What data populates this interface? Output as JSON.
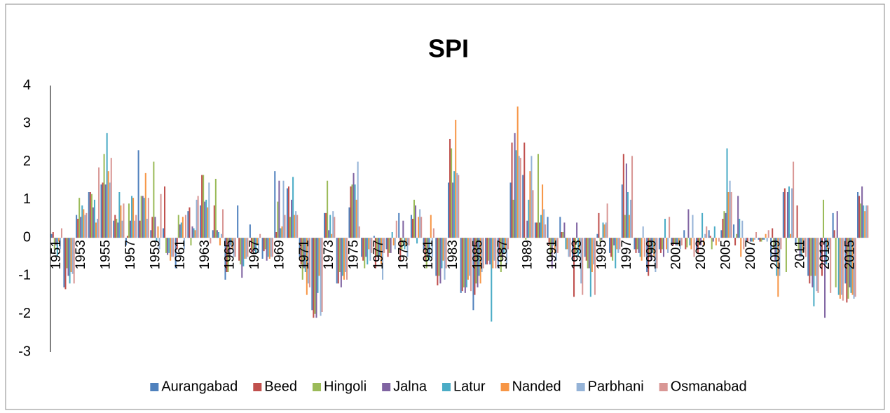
{
  "chart_data": {
    "type": "bar",
    "title": "SPI",
    "categories": [
      "1951",
      null,
      "1953",
      null,
      "1955",
      null,
      "1957",
      null,
      "1959",
      null,
      "1961",
      null,
      "1963",
      null,
      "1965",
      null,
      "1967",
      null,
      "1969",
      null,
      "1971",
      null,
      "1973",
      null,
      "1975",
      null,
      "1977",
      null,
      "1979",
      null,
      "1981",
      null,
      "1983",
      null,
      "1985",
      null,
      "1987",
      null,
      "1989",
      null,
      "1991",
      null,
      "1993",
      null,
      "1995",
      null,
      "1997",
      null,
      "1999",
      null,
      "2001",
      null,
      "2003",
      null,
      "2005",
      null,
      "2007",
      null,
      "2009",
      null,
      "2011",
      null,
      "2013",
      null,
      "2015",
      null
    ],
    "ylim": [
      -3,
      4
    ],
    "yticks": [
      -3,
      -2,
      -1,
      0,
      1,
      2,
      3,
      4
    ],
    "grid": false,
    "legend": "bottom",
    "series": [
      {
        "name": "Aurangabad",
        "color": "#4F81BD",
        "values": [
          0.1,
          -1.3,
          0.6,
          1.2,
          1.4,
          0.45,
          -0.2,
          2.3,
          0.2,
          0.25,
          -0.8,
          0.7,
          0.85,
          0.2,
          -1.1,
          0.85,
          0.35,
          -0.55,
          1.75,
          1.3,
          -0.5,
          -1.9,
          0.65,
          -1.2,
          0.8,
          -0.5,
          0.05,
          -0.3,
          0.65,
          0.6,
          -0.3,
          -1.0,
          1.45,
          -1.45,
          -1.9,
          -0.7,
          -0.8,
          1.45,
          1.65,
          0.4,
          0.55,
          0.55,
          -0.6,
          -0.5,
          0.1,
          -0.4,
          1.4,
          -0.3,
          -0.9,
          -0.3,
          -0.2,
          0.2,
          -0.3,
          0.2,
          0.2,
          0.35,
          -0.1,
          -0.05,
          -0.5,
          1.2,
          -0.2,
          -1.0,
          -0.5,
          0.65,
          -1.2,
          1.2
        ]
      },
      {
        "name": "Beed",
        "color": "#C0504D",
        "values": [
          0.15,
          -1.35,
          0.5,
          1.2,
          1.45,
          0.6,
          0.05,
          0.45,
          0.55,
          1.35,
          -0.3,
          0.8,
          1.65,
          0.85,
          -0.9,
          -0.6,
          -0.4,
          -0.35,
          0.15,
          1.35,
          -0.7,
          -2.1,
          0.65,
          -1.2,
          1.35,
          -0.6,
          -0.8,
          -0.5,
          -0.6,
          0.5,
          -0.6,
          -1.25,
          2.6,
          -1.4,
          -1.5,
          -0.7,
          -0.5,
          2.5,
          2.5,
          0.4,
          -0.2,
          0.15,
          -1.55,
          -0.6,
          0.65,
          -0.5,
          2.2,
          -0.4,
          -1.0,
          -0.4,
          -0.2,
          -0.3,
          -0.4,
          0.05,
          0.5,
          -0.2,
          -0.1,
          -0.1,
          0.25,
          1.3,
          0.85,
          -1.2,
          -1.0,
          0.2,
          -1.7,
          1.1
        ]
      },
      {
        "name": "Hingoli",
        "color": "#9BBB59",
        "values": [
          -0.3,
          -0.8,
          1.05,
          1.15,
          2.2,
          0.5,
          0.9,
          1.1,
          2.0,
          -0.4,
          0.6,
          -0.2,
          1.65,
          1.55,
          -0.9,
          -0.7,
          -0.3,
          -0.3,
          0.95,
          0.55,
          -1.1,
          -2.0,
          1.5,
          -0.9,
          1.4,
          -0.8,
          -0.5,
          -0.4,
          -0.3,
          1.0,
          -0.8,
          -1.0,
          2.35,
          -1.3,
          -1.2,
          -0.6,
          -0.9,
          1.0,
          -0.05,
          2.2,
          -0.5,
          0.15,
          -0.4,
          -0.8,
          -0.1,
          -0.6,
          0.6,
          -0.3,
          -0.5,
          -0.3,
          -0.15,
          -0.25,
          -0.2,
          -0.3,
          0.7,
          0.1,
          0.0,
          -0.1,
          -0.3,
          -0.9,
          -0.3,
          -1.0,
          1.0,
          -1.3,
          -1.6,
          0.9
        ]
      },
      {
        "name": "Jalna",
        "color": "#8064A2",
        "values": [
          -0.2,
          -1.0,
          0.55,
          0.8,
          1.4,
          0.4,
          0.45,
          1.1,
          0.55,
          -0.45,
          0.35,
          0.3,
          0.95,
          0.2,
          -0.5,
          -1.05,
          -0.35,
          -0.6,
          1.5,
          1.0,
          -0.8,
          -2.1,
          0.2,
          -1.3,
          1.7,
          -0.5,
          -0.6,
          -0.4,
          0.45,
          0.85,
          -0.5,
          -1.2,
          1.45,
          -1.45,
          -1.3,
          -0.7,
          -0.5,
          2.75,
          0.45,
          0.4,
          -0.8,
          0.4,
          0.4,
          -0.8,
          -0.05,
          -0.2,
          1.95,
          -0.4,
          -0.6,
          -0.5,
          -0.2,
          0.75,
          -0.2,
          -0.1,
          0.65,
          1.1,
          -0.1,
          -0.05,
          -0.6,
          1.2,
          -0.5,
          -1.3,
          -2.1,
          0.7,
          -1.3,
          1.35
        ]
      },
      {
        "name": "Latur",
        "color": "#4BACC6",
        "values": [
          -0.5,
          -1.2,
          0.85,
          1.0,
          2.75,
          1.2,
          1.1,
          1.05,
          -0.1,
          -0.4,
          0.4,
          0.25,
          1.0,
          0.15,
          -0.2,
          -0.75,
          -0.4,
          -0.5,
          0.25,
          1.6,
          -0.9,
          -1.45,
          0.6,
          -1.0,
          1.4,
          -0.7,
          -0.5,
          0.15,
          -0.3,
          -0.15,
          -0.6,
          -0.8,
          1.75,
          -1.3,
          -1.0,
          -2.2,
          -0.4,
          2.3,
          1.0,
          0.6,
          -0.2,
          -0.3,
          -0.5,
          -1.55,
          0.4,
          -0.8,
          1.2,
          -0.5,
          -0.4,
          0.5,
          -0.2,
          -0.2,
          0.65,
          0.3,
          2.35,
          0.5,
          -0.1,
          -0.05,
          -1.0,
          1.35,
          -0.5,
          -1.8,
          -0.7,
          -1.5,
          -1.45,
          0.85
        ]
      },
      {
        "name": "Nanded",
        "color": "#F79646",
        "values": [
          -0.1,
          -0.9,
          0.75,
          0.4,
          1.75,
          0.85,
          1.05,
          1.7,
          0.3,
          -0.6,
          0.55,
          0.2,
          0.8,
          -0.2,
          -0.3,
          -0.55,
          -0.2,
          -0.55,
          0.3,
          0.6,
          -1.5,
          -1.0,
          0.1,
          -1.1,
          1.0,
          -0.3,
          -0.7,
          -0.2,
          -0.2,
          0.55,
          0.6,
          -0.6,
          3.1,
          -1.1,
          -1.2,
          -0.8,
          -0.3,
          3.45,
          1.75,
          1.4,
          -0.4,
          -0.3,
          -0.3,
          -0.9,
          0.35,
          -0.3,
          0.6,
          -0.6,
          -0.5,
          -0.3,
          -0.2,
          -0.3,
          -0.2,
          -0.2,
          1.2,
          -0.5,
          -0.1,
          0.1,
          -1.55,
          0.1,
          -0.4,
          -1.0,
          -0.3,
          -1.6,
          -1.5,
          0.7
        ]
      },
      {
        "name": "Parbhani",
        "color": "#95B3D7",
        "values": [
          -0.3,
          -0.95,
          0.6,
          0.5,
          1.45,
          0.45,
          0.45,
          0.5,
          -0.3,
          -0.5,
          -0.3,
          1.0,
          1.45,
          0.1,
          -0.5,
          -0.55,
          -0.4,
          -0.5,
          1.5,
          0.7,
          -1.2,
          -2.05,
          0.7,
          -0.9,
          2.0,
          -0.6,
          -1.1,
          -0.3,
          -0.5,
          0.75,
          -0.5,
          -1.1,
          1.7,
          -1.0,
          -0.9,
          -0.6,
          -0.7,
          2.15,
          2.15,
          0.75,
          -0.6,
          -0.5,
          -1.2,
          -0.7,
          0.4,
          -0.4,
          1.0,
          0.3,
          -0.9,
          -0.4,
          -0.3,
          0.6,
          0.1,
          0.0,
          1.5,
          0.45,
          -0.05,
          -0.1,
          -1.0,
          1.3,
          -0.3,
          -1.4,
          -0.3,
          -1.5,
          -1.6,
          0.85
        ]
      },
      {
        "name": "Osmanabad",
        "color": "#D99795",
        "values": [
          0.25,
          -1.2,
          0.65,
          1.85,
          2.1,
          0.9,
          0.6,
          1.05,
          1.15,
          -0.5,
          0.6,
          1.1,
          -0.15,
          0.75,
          -0.5,
          -0.5,
          0.1,
          -0.5,
          0.6,
          0.6,
          -1.3,
          -1.95,
          0.55,
          -1.1,
          0.3,
          -0.4,
          -0.4,
          0.45,
          -0.2,
          0.55,
          0.25,
          -0.8,
          1.65,
          -1.4,
          -0.8,
          -0.8,
          -0.3,
          2.1,
          1.25,
          0.35,
          -0.4,
          -0.5,
          -1.5,
          -1.5,
          0.9,
          -0.3,
          2.15,
          -0.5,
          -0.8,
          0.55,
          -0.2,
          -0.5,
          0.3,
          -0.1,
          1.2,
          -0.3,
          0.15,
          0.2,
          -0.3,
          2.0,
          -0.5,
          -1.45,
          -1.45,
          -1.65,
          -1.55,
          0.85
        ]
      }
    ]
  }
}
